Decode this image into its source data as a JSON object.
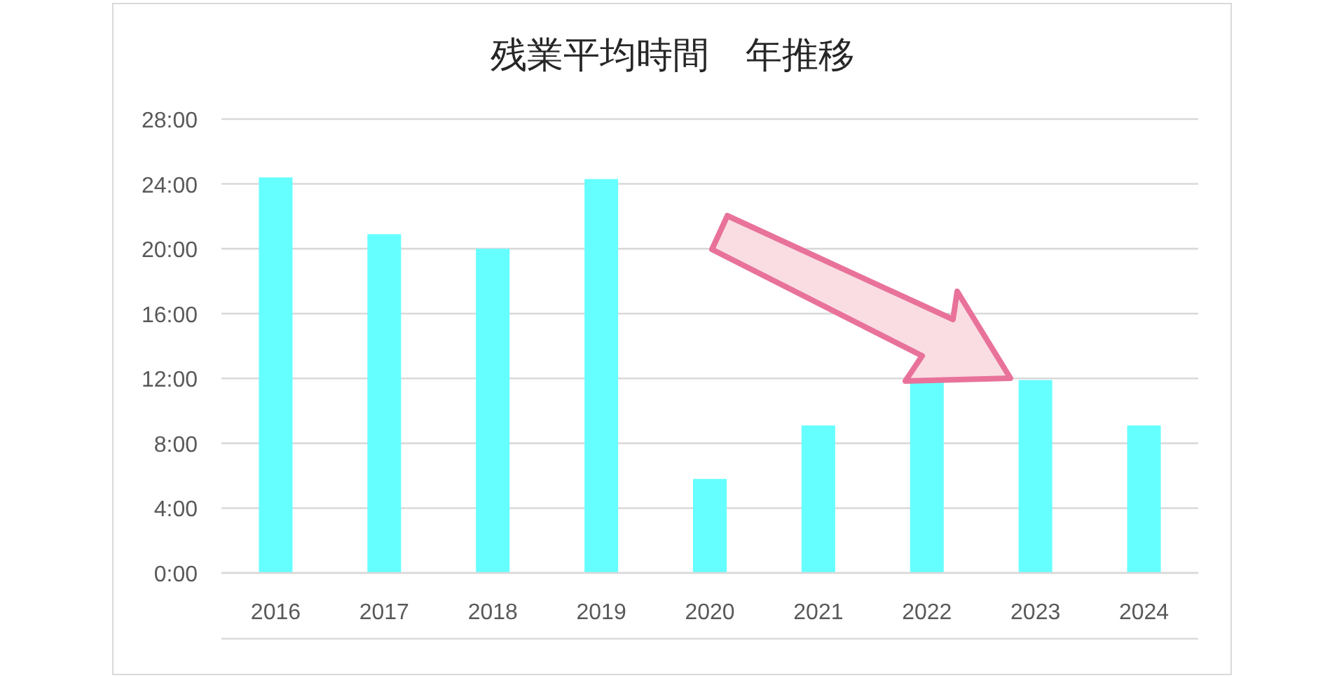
{
  "chart_data": {
    "type": "bar",
    "title": "残業平均時間　年推移",
    "categories": [
      "2016",
      "2017",
      "2018",
      "2019",
      "2020",
      "2021",
      "2022",
      "2023",
      "2024"
    ],
    "values": [
      24.4,
      20.9,
      20.0,
      24.3,
      5.8,
      9.1,
      11.8,
      11.9,
      9.1
    ],
    "color": "#66ffff",
    "ylim": [
      0,
      28
    ],
    "yticks": [
      {
        "value": 0,
        "label": "0:00"
      },
      {
        "value": 4,
        "label": "4:00"
      },
      {
        "value": 8,
        "label": "8:00"
      },
      {
        "value": 12,
        "label": "12:00"
      },
      {
        "value": 16,
        "label": "16:00"
      },
      {
        "value": 20,
        "label": "20:00"
      },
      {
        "value": 24,
        "label": "24:00"
      },
      {
        "value": 28,
        "label": "28:00"
      }
    ],
    "grid": "y"
  }
}
